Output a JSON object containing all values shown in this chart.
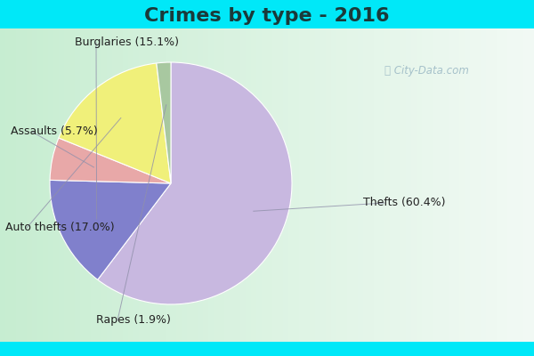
{
  "title": "Crimes by type - 2016",
  "labels": [
    "Thefts",
    "Burglaries",
    "Assaults",
    "Auto thefts",
    "Rapes"
  ],
  "values": [
    60.4,
    15.1,
    5.7,
    17.0,
    1.9
  ],
  "colors": [
    "#c8b8e0",
    "#8080cc",
    "#e8a8a8",
    "#f0f07a",
    "#a8c8a0"
  ],
  "label_texts": [
    "Thefts (60.4%)",
    "Burglaries (15.1%)",
    "Assaults (5.7%)",
    "Auto thefts (17.0%)",
    "Rapes (1.9%)"
  ],
  "background_cyan": "#00e8f8",
  "title_fontsize": 16,
  "label_fontsize": 9,
  "startangle": 90
}
